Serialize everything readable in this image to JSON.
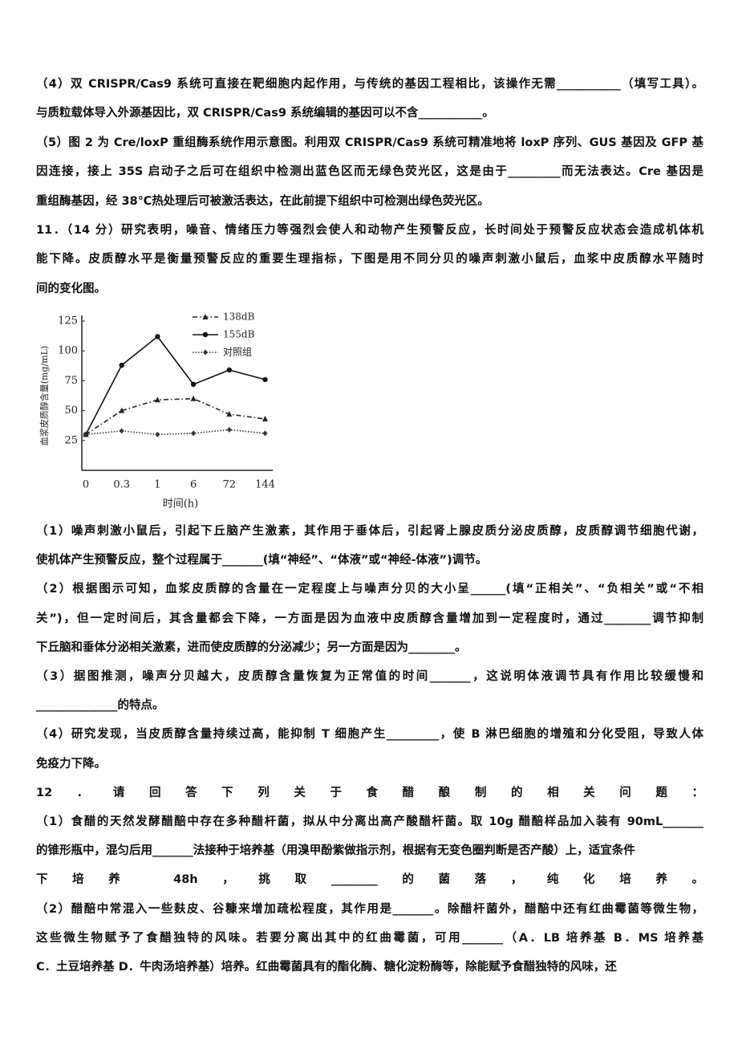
{
  "document": {
    "lines_before": [
      "（4）双 CRISPR/Cas9 系统可直接在靶细胞内起作用，与传统的基因工程相比，该操作无需___________（填写工具）。",
      "与质粒载体导入外源基因比，双 CRISPR/Cas9 系统编辑的基因可以不含___________。",
      "（5）图 2 为 Cre/loxP 重组酶系统作用示意图。利用双 CRISPR/Cas9 系统可精准地将 loxP 序列、GUS 基因及 GFP 基",
      "因连接，接上 35S 启动子之后可在组织中检测出蓝色区而无绿色荧光区，这是由于_________而无法表达。Cre 基因是",
      "重组酶基因，经 38℃热处理后可被激活表达，在此前提下组织中可检测出绿色荧光区。",
      "11．（14 分）研究表明，噪音、情绪压力等强烈会使人和动物产生预警反应，长时间处于预警反应状态会造成机体机",
      "能下降。皮质醇水平是衡量预警反应的重要生理指标，下图是用不同分贝的噪声刺激小鼠后，血浆中皮质醇水平随时",
      "间的变化图。"
    ],
    "lines_after": [
      "（1）噪声刺激小鼠后，引起下丘脑产生激素，其作用于垂体后，引起肾上腺皮质分泌皮质醇，皮质醇调节细胞代谢，",
      "使机体产生预警反应，整个过程属于_______(填“神经”、“体液”或“神经-体液”)调节。",
      "（2）根据图示可知，血浆皮质醇的含量在一定程度上与噪声分贝的大小呈______(填“正相关”、“负相关”或“不相",
      "关”)，但一定时间后，其含量都会下降，一方面是因为血液中皮质醇含量增加到一定程度时，通过________调节抑制",
      "下丘脑和垂体分泌相关激素，进而使皮质醇的分泌减少；另一方面是因为________。",
      "（3）据图推测，噪声分贝越大，皮质醇含量恢复为正常值的时间_______，这说明体液调节具有作用比较缓慢和",
      "______________的特点。",
      "（4）研究发现，当皮质醇含量持续过高，能抑制 T 细胞产生_________，使 B 淋巴细胞的增殖和分化受阻，导致人体",
      "免疫力下降。",
      "12．请回答下列关于食醋酿制的相关问题：",
      "（1）食醋的天然发酵醋醅中存在多种醋杆菌，拟从中分离出高产酸醋杆菌。取 10g 醋醅样品加入装有 90mL_______",
      "的锥形瓶中，混匀后用_______法接种于培养基（用溴甲酚紫做指示剂，根据有无变色圈判断是否产酸）上，适宜条件",
      "下培养 48h，挑取________的菌落，纯化培养。",
      "（2）醋醅中常混入一些麸皮、谷糠来增加疏松程度，其作用是_______。除醋杆菌外，醋醅中还有红曲霉菌等微生物，",
      "这些微生物赋予了食醋独特的风味。若要分离出其中的红曲霉菌，可用_______（A．LB 培养基    B．MS 培养基",
      "C．土豆培养基    D．牛肉汤培养基）培养。红曲霉菌具有的酯化酶、糖化淀粉酶等，除能赋予食醋独特的风味，还"
    ]
  },
  "chart_data": {
    "type": "line",
    "x_label": "时间(h)",
    "y_label": "血浆皮质醇含量(mg/mL)",
    "categories": [
      "0",
      "0.3",
      "1",
      "6",
      "72",
      "144"
    ],
    "series": [
      {
        "name": "138dB",
        "color": "#222222",
        "style": "dashdot",
        "marker": "triangle",
        "values": [
          30,
          50,
          59,
          60,
          47,
          43
        ]
      },
      {
        "name": "155dB",
        "color": "#111111",
        "style": "solid",
        "marker": "circle",
        "values": [
          30,
          88,
          112,
          72,
          84,
          76
        ]
      },
      {
        "name": "对照组",
        "color": "#333333",
        "style": "dotted",
        "marker": "diamond",
        "values": [
          30,
          33,
          30,
          31,
          34,
          31
        ]
      }
    ],
    "ylim": [
      0,
      125
    ],
    "yticks": [
      25,
      50,
      75,
      100,
      125
    ],
    "legend": "top-right"
  }
}
